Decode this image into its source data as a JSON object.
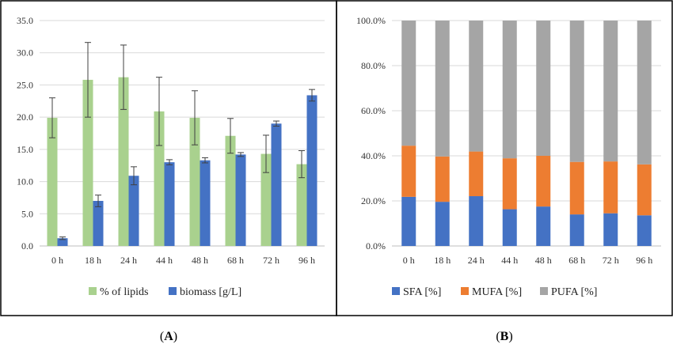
{
  "chart_data": [
    {
      "type": "bar",
      "panel_label": "A",
      "categories": [
        "0 h",
        "18 h",
        "24 h",
        "44 h",
        "48 h",
        "68 h",
        "72 h",
        "96 h"
      ],
      "ylim": [
        0,
        35
      ],
      "yticks": [
        "0.0",
        "5.0",
        "10.0",
        "15.0",
        "20.0",
        "25.0",
        "30.0",
        "35.0"
      ],
      "grid": true,
      "legend_position": "bottom",
      "series": [
        {
          "name": "% of lipids",
          "color": "#a9d18e",
          "values": [
            19.9,
            25.8,
            26.2,
            20.9,
            19.9,
            17.1,
            14.3,
            12.7
          ],
          "error": [
            3.1,
            5.8,
            5.0,
            5.3,
            4.2,
            2.7,
            2.9,
            2.1
          ]
        },
        {
          "name": "biomass [g/L]",
          "color": "#4472c4",
          "values": [
            1.2,
            7.0,
            10.9,
            13.0,
            13.3,
            14.2,
            19.0,
            23.4
          ],
          "error": [
            0.2,
            0.9,
            1.4,
            0.4,
            0.4,
            0.3,
            0.4,
            0.9
          ]
        }
      ]
    },
    {
      "type": "bar",
      "stacked": true,
      "panel_label": "B",
      "categories": [
        "0 h",
        "18 h",
        "24 h",
        "44 h",
        "48 h",
        "68 h",
        "72 h",
        "96 h"
      ],
      "ylim": [
        0,
        100
      ],
      "yticks": [
        "0.0%",
        "20.0%",
        "40.0%",
        "60.0%",
        "80.0%",
        "100.0%"
      ],
      "grid": true,
      "legend_position": "bottom",
      "series": [
        {
          "name": "SFA [%]",
          "color": "#4472c4",
          "values": [
            21.8,
            19.6,
            22.1,
            16.3,
            17.5,
            14.0,
            14.5,
            13.6
          ]
        },
        {
          "name": "MUFA [%]",
          "color": "#ed7d31",
          "values": [
            22.7,
            20.1,
            19.8,
            22.6,
            22.5,
            23.3,
            23.0,
            22.6
          ]
        },
        {
          "name": "PUFA [%]",
          "color": "#a5a5a5",
          "values": [
            55.5,
            60.3,
            58.1,
            61.1,
            60.0,
            62.7,
            62.5,
            63.8
          ]
        }
      ]
    }
  ]
}
